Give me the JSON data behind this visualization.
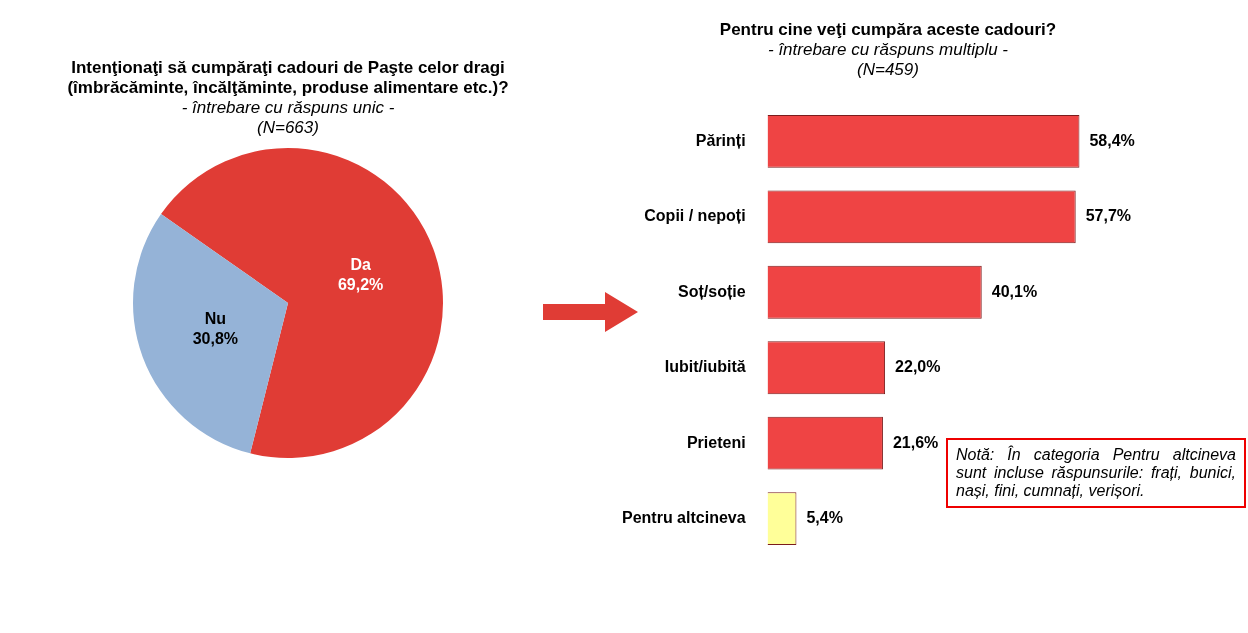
{
  "chart_data": [
    {
      "type": "pie",
      "title": "Intenţionaţi să cumpăraţi cadouri de Paşte celor dragi (îmbrăcăminte, încălţăminte, produse alimentare etc.)?",
      "subtitle": "- întrebare cu răspuns unic -\n(N=663)",
      "categories": [
        "Da",
        "Nu"
      ],
      "values": [
        69.2,
        30.8
      ],
      "colors": [
        "#e03c35",
        "#95b3d7"
      ],
      "value_labels": [
        "69,2%",
        "30,8%"
      ],
      "legend": false
    },
    {
      "type": "bar",
      "orientation": "horizontal",
      "title": "Pentru cine veţi cumpăra aceste cadouri?",
      "subtitle": "- întrebare cu răspuns multiplu -\n(N=459)",
      "categories": [
        "Părinți",
        "Copii / nepoți",
        "Soț/soție",
        "Iubit/iubită",
        "Prieteni",
        "Pentru altcineva"
      ],
      "values": [
        58.4,
        57.7,
        40.1,
        22.0,
        21.6,
        5.4
      ],
      "colors": [
        "#ef4444",
        "#ef4444",
        "#ef4444",
        "#ef4444",
        "#ef4444",
        "#ffff99"
      ],
      "value_labels": [
        "58,4%",
        "57,7%",
        "40,1%",
        "22,0%",
        "21,6%",
        "5,4%"
      ],
      "tick_labels": "y",
      "grid": false,
      "legend": false,
      "annotations": [
        "Notă: În categoria Pentru altcineva sunt incluse răspunsurile: frați, bunici, nași, fini, cumnați, verișori."
      ]
    }
  ]
}
